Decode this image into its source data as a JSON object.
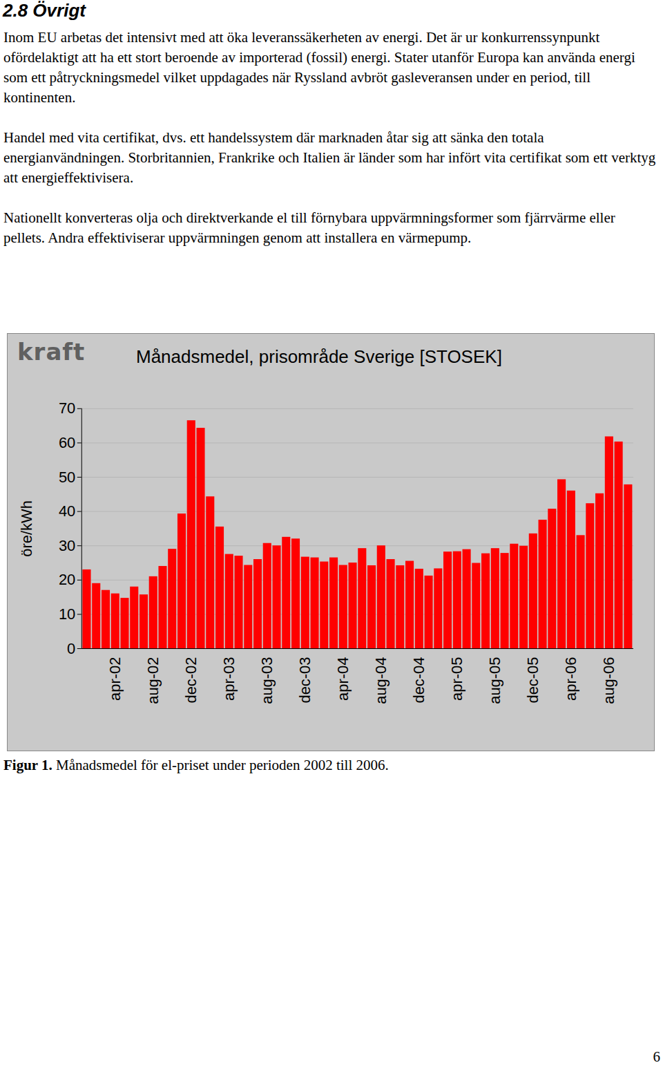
{
  "heading": "2.8 Övrigt",
  "paragraphs": [
    "Inom EU arbetas det intensivt med att öka leveranssäkerheten av energi. Det är ur konkurrenssynpunkt ofördelaktigt att ha ett stort beroende av importerad (fossil) energi. Stater utanför Europa kan använda energi som ett påtryckningsmedel vilket uppdagades när Ryssland avbröt gasleveransen under en period, till kontinenten.",
    "Handel med vita certifikat, dvs. ett handelssystem där marknaden åtar sig att sänka den totala energianvändningen. Storbritannien, Frankrike och Italien är länder som har infört vita certifikat som ett verktyg att energieffektivisera.",
    "Nationellt konverteras olja och direktverkande el till förnybara uppvärmningsformer som fjärrvärme eller pellets. Andra effektiviserar uppvärmningen genom att installera en värmepump."
  ],
  "chart_logo": "kraft",
  "chart_data": {
    "type": "bar",
    "title": "Månadsmedel, prisområde Sverige [STOSEK]",
    "ylabel": "öre/kWh",
    "categories": [
      null,
      null,
      null,
      "apr-02",
      null,
      null,
      null,
      "aug-02",
      null,
      null,
      null,
      "dec-02",
      null,
      null,
      null,
      "apr-03",
      null,
      null,
      null,
      "aug-03",
      null,
      null,
      null,
      "dec-03",
      null,
      null,
      null,
      "apr-04",
      null,
      null,
      null,
      "aug-04",
      null,
      null,
      null,
      "dec-04",
      null,
      null,
      null,
      "apr-05",
      null,
      null,
      null,
      "aug-05",
      null,
      null,
      null,
      "dec-05",
      null,
      null,
      null,
      "apr-06",
      null,
      null,
      null,
      "aug-06",
      null,
      null
    ],
    "values": [
      23,
      19,
      17,
      16,
      14.7,
      18,
      15.7,
      21,
      24,
      29,
      39.3,
      66.5,
      64.3,
      44.3,
      35.5,
      27.5,
      27,
      24.3,
      26,
      30.7,
      30,
      32.5,
      32,
      26.7,
      26.5,
      25.3,
      26.5,
      24.3,
      25,
      29.2,
      24.2,
      30,
      26,
      24.2,
      25.5,
      23.2,
      21.2,
      23.3,
      28.2,
      28.3,
      28.9,
      24.9,
      27.7,
      29.2,
      27.8,
      30.5,
      29.9,
      33.5,
      37.5,
      40.7,
      49.3,
      46,
      33,
      42.3,
      45.2,
      61.8,
      60.3,
      47.8
    ],
    "color": "#ff0000",
    "ylim": [
      0,
      70
    ],
    "yticks": [
      0,
      10,
      20,
      30,
      40,
      50,
      60,
      70
    ],
    "grid": true
  },
  "caption": {
    "label": "Figur 1.",
    "text": "Månadsmedel för el-priset under perioden 2002 till 2006."
  },
  "page_number": 6
}
